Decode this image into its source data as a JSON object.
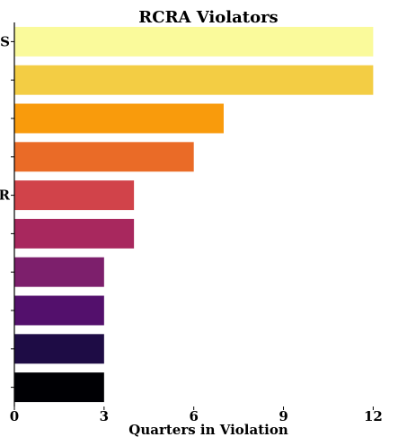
{
  "chart_data": {
    "type": "bar",
    "orientation": "horizontal",
    "title": "RCRA Violators",
    "xlabel": "Quarters in Violation",
    "ylabel": "",
    "xlim": [
      0,
      12.8
    ],
    "xticks": [
      0,
      3,
      6,
      9,
      12
    ],
    "grid": false,
    "categories_visible": [
      "S",
      "",
      "",
      "",
      "R",
      "",
      "",
      "",
      "",
      ""
    ],
    "values": [
      12,
      12,
      7,
      6,
      4,
      4,
      3,
      3,
      3,
      3
    ],
    "colors": [
      "#fafa9b",
      "#f3cd44",
      "#f99b0c",
      "#ea6b27",
      "#d1434a",
      "#a8285e",
      "#7d1f6c",
      "#53106c",
      "#1e0c45",
      "#000004"
    ]
  }
}
